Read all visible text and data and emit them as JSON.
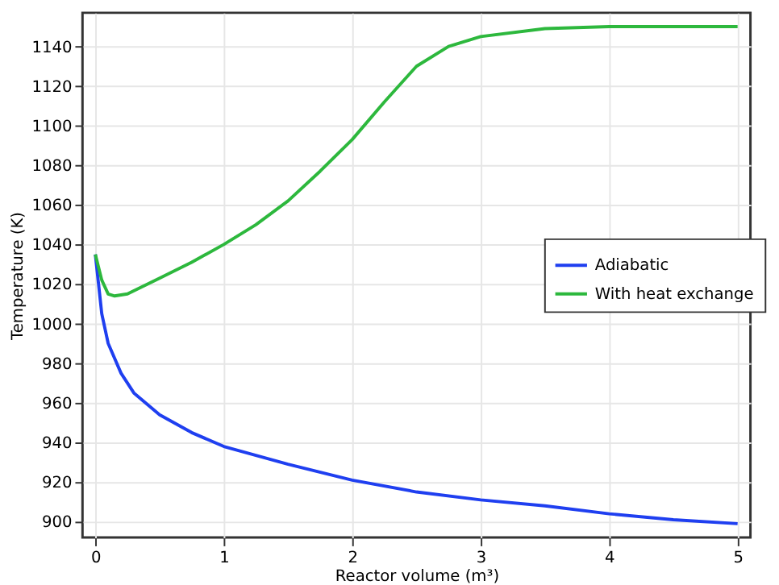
{
  "chart_data": {
    "type": "line",
    "xlabel": "Reactor volume (m³)",
    "ylabel": "Temperature (K)",
    "xlim": [
      -0.1,
      5.1
    ],
    "xticks": [
      0,
      1,
      2,
      3,
      4,
      5
    ],
    "ylim": [
      892,
      1157
    ],
    "yticks": [
      900,
      920,
      940,
      960,
      980,
      1000,
      1020,
      1040,
      1060,
      1080,
      1100,
      1120,
      1140
    ],
    "grid": true,
    "legend": "right",
    "line_style": "solid",
    "marker": "none",
    "series": [
      {
        "name": "Adiabatic",
        "color": "#1f3ff0",
        "x": [
          0,
          0.05,
          0.1,
          0.2,
          0.3,
          0.5,
          0.75,
          1,
          1.5,
          2,
          2.5,
          3,
          3.5,
          4,
          4.5,
          5
        ],
        "values": [
          1035,
          1005,
          990,
          975,
          965,
          954,
          945,
          938,
          929,
          921,
          915,
          911,
          908,
          904,
          901,
          899
        ]
      },
      {
        "name": "With heat exchange",
        "color": "#2db83d",
        "x": [
          0,
          0.05,
          0.1,
          0.15,
          0.25,
          0.5,
          0.75,
          1,
          1.25,
          1.5,
          1.75,
          2,
          2.25,
          2.5,
          2.75,
          3,
          3.5,
          4,
          5
        ],
        "values": [
          1035,
          1022,
          1015,
          1014,
          1015,
          1023,
          1031,
          1040,
          1050,
          1062,
          1077,
          1093,
          1112,
          1130,
          1140,
          1145,
          1149,
          1150,
          1150
        ]
      }
    ]
  }
}
